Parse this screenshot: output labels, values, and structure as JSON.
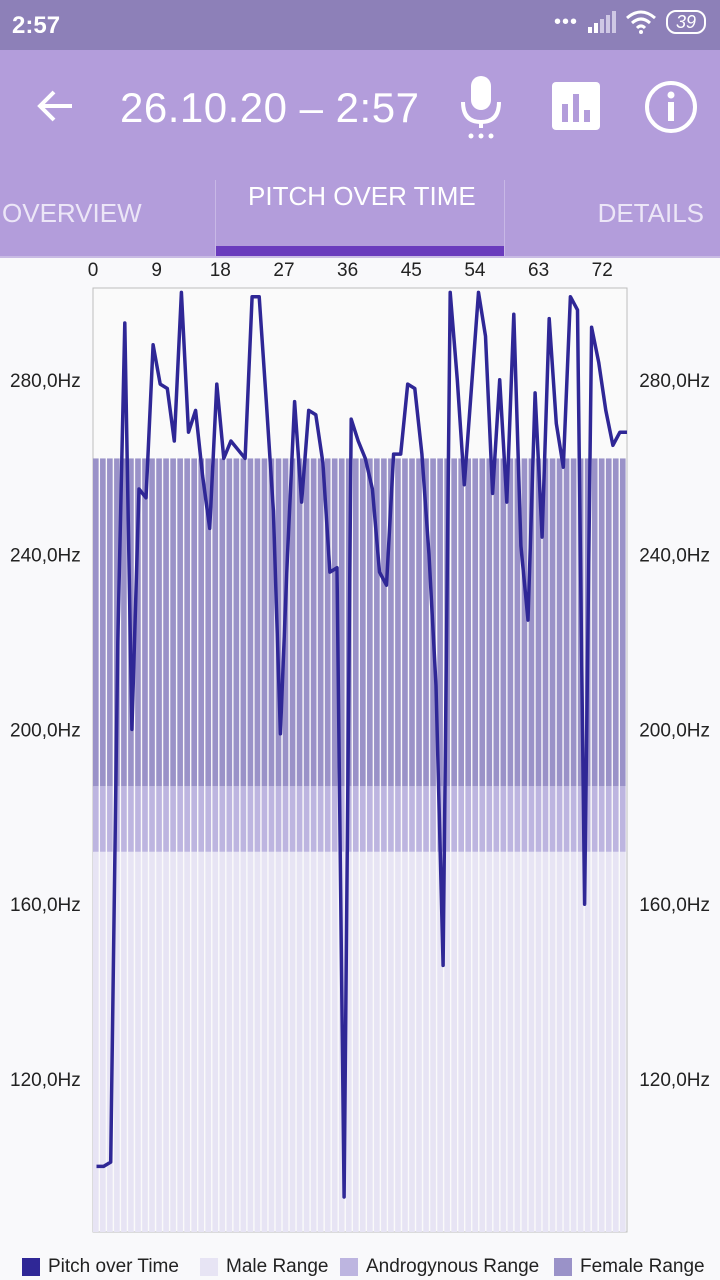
{
  "status_bar": {
    "time": "2:57",
    "battery": "39"
  },
  "app_bar": {
    "title": "26.10.20 – 2:57"
  },
  "tabs": [
    {
      "label": "OVERVIEW"
    },
    {
      "label": "PITCH OVER TIME"
    },
    {
      "label": "DETAILS"
    }
  ],
  "colors": {
    "line": "#2f2796",
    "female": "#9a92c8",
    "androgynous": "#bdb5e0",
    "male": "#e7e4f4",
    "accent": "#6a3bbd"
  },
  "chart_data": {
    "type": "line",
    "x_ticks": [
      "0",
      "9",
      "18",
      "27",
      "36",
      "45",
      "54",
      "63",
      "72"
    ],
    "y_ticks": [
      "120,0Hz",
      "160,0Hz",
      "200,0Hz",
      "240,0Hz",
      "280,0Hz"
    ],
    "xlim": [
      0,
      75.5
    ],
    "ylim": [
      85,
      301
    ],
    "ranges": {
      "male": [
        85,
        172
      ],
      "androgynous": [
        172,
        187
      ],
      "female": [
        187,
        262
      ]
    },
    "series": [
      {
        "name": "Pitch over Time",
        "x": [
          0,
          1,
          2,
          3,
          4,
          5,
          6,
          7,
          8,
          9,
          10,
          11,
          12,
          13,
          14,
          15,
          16,
          17,
          18,
          19,
          20,
          21,
          22,
          23,
          24,
          25,
          26,
          27,
          28,
          29,
          30,
          31,
          32,
          33,
          34,
          35,
          36,
          37,
          38,
          39,
          40,
          41,
          42,
          43,
          44,
          45,
          46,
          47,
          48,
          49,
          50,
          51,
          52,
          53,
          54,
          55,
          56,
          57,
          58,
          59,
          60,
          61,
          62,
          63,
          64,
          65,
          66,
          67,
          68,
          69,
          70,
          71,
          72,
          73,
          74,
          75
        ],
        "values": [
          100,
          100,
          101,
          220,
          293,
          200,
          255,
          253,
          288,
          279,
          278,
          266,
          300,
          268,
          273,
          258,
          246,
          279,
          262,
          266,
          264,
          262,
          299,
          299,
          275,
          250,
          199,
          240,
          275,
          252,
          273,
          272,
          261,
          236,
          237,
          93,
          271,
          266,
          262,
          255,
          236,
          233,
          263,
          263,
          279,
          278,
          263,
          240,
          210,
          146,
          300,
          280,
          256,
          278,
          300,
          290,
          254,
          280,
          252,
          295,
          242,
          225,
          277,
          244,
          294,
          270,
          260,
          299,
          296,
          160,
          292,
          284,
          273,
          265,
          268,
          268
        ]
      }
    ],
    "legend": [
      "Pitch over Time",
      "Male Range",
      "Androgynous Range",
      "Female Range"
    ]
  }
}
